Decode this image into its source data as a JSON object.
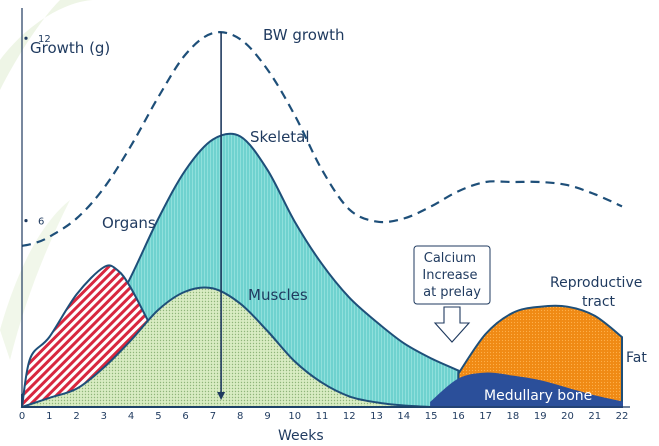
{
  "chart_data": {
    "type": "area",
    "ylabel": "Growth (g)",
    "xlabel": "Weeks",
    "x_ticks": [
      0,
      1,
      2,
      3,
      4,
      5,
      6,
      7,
      8,
      9,
      10,
      11,
      12,
      13,
      14,
      15,
      16,
      17,
      18,
      19,
      20,
      21,
      22
    ],
    "y_ticks": [
      6,
      12
    ],
    "xlim": [
      0,
      22
    ],
    "ylim": [
      0,
      12.5
    ],
    "grid": false,
    "vline_week": 7.3,
    "series": [
      {
        "name": "BW growth",
        "style": "dashed-line",
        "x": [
          0,
          0.5,
          1,
          2,
          3,
          4,
          5,
          6,
          7,
          8,
          9,
          10,
          11,
          12,
          13,
          14,
          15,
          16,
          17,
          18,
          19,
          20,
          21,
          22
        ],
        "y": [
          5.3,
          5.4,
          5.6,
          6.2,
          7.2,
          8.6,
          10.2,
          11.6,
          12.3,
          12.1,
          11.1,
          9.6,
          7.8,
          6.5,
          6.1,
          6.2,
          6.6,
          7.1,
          7.4,
          7.4,
          7.4,
          7.3,
          7.0,
          6.6
        ]
      },
      {
        "name": "Skeletal",
        "style": "area",
        "x": [
          0,
          1,
          2,
          3,
          4,
          5,
          6,
          7,
          8,
          9,
          10,
          11,
          12,
          13,
          14,
          15,
          16
        ],
        "y": [
          0.4,
          0.8,
          1.5,
          2.6,
          4.3,
          6.2,
          7.8,
          8.8,
          8.9,
          7.8,
          6.1,
          4.7,
          3.6,
          2.8,
          2.1,
          1.6,
          1.2
        ]
      },
      {
        "name": "Organs",
        "style": "area",
        "x": [
          0,
          0.3,
          1,
          2,
          3,
          3.5,
          4,
          5,
          6
        ],
        "y": [
          0,
          1.6,
          2.3,
          3.7,
          4.6,
          4.5,
          3.9,
          2.2,
          0.8
        ]
      },
      {
        "name": "Muscles",
        "style": "area",
        "x": [
          0,
          1,
          2,
          3,
          4,
          5,
          6,
          7,
          8,
          9,
          10,
          11,
          12,
          13,
          14,
          15
        ],
        "y": [
          0,
          0.3,
          0.6,
          1.3,
          2.2,
          3.2,
          3.8,
          3.9,
          3.4,
          2.5,
          1.5,
          0.8,
          0.35,
          0.15,
          0.05,
          0
        ]
      },
      {
        "name": "Reproductive tract",
        "style": "area",
        "x": [
          16,
          17,
          18,
          19,
          20,
          21,
          22
        ],
        "y": [
          1.1,
          2.4,
          3.1,
          3.3,
          3.3,
          3.0,
          2.3
        ]
      },
      {
        "name": "Fat",
        "style": "area",
        "x": [
          13,
          16,
          18,
          20,
          21,
          22
        ],
        "y": [
          0,
          0.6,
          1.0,
          1.3,
          1.5,
          1.7
        ]
      },
      {
        "name": "Medullary bone",
        "style": "area",
        "x": [
          15,
          16,
          17,
          18,
          19,
          20,
          21,
          22
        ],
        "y": [
          0.15,
          0.9,
          1.1,
          1.0,
          0.85,
          0.6,
          0.35,
          0.15
        ]
      }
    ],
    "annotations": [
      {
        "text": "Calcium Increase at prelay",
        "lines": [
          "Calcium",
          "Increase",
          "at prelay"
        ],
        "week": 15.7
      }
    ],
    "colors": {
      "axis": "#1f3a5f",
      "skeletal": "#6fd2cf",
      "muscles": "#cfe6b8",
      "organs": "#d8273f",
      "reproductive": "#f08a14",
      "fat": "#ffe7a0",
      "medullary": "#2b4f9a",
      "outline": "#1e4f79"
    }
  }
}
